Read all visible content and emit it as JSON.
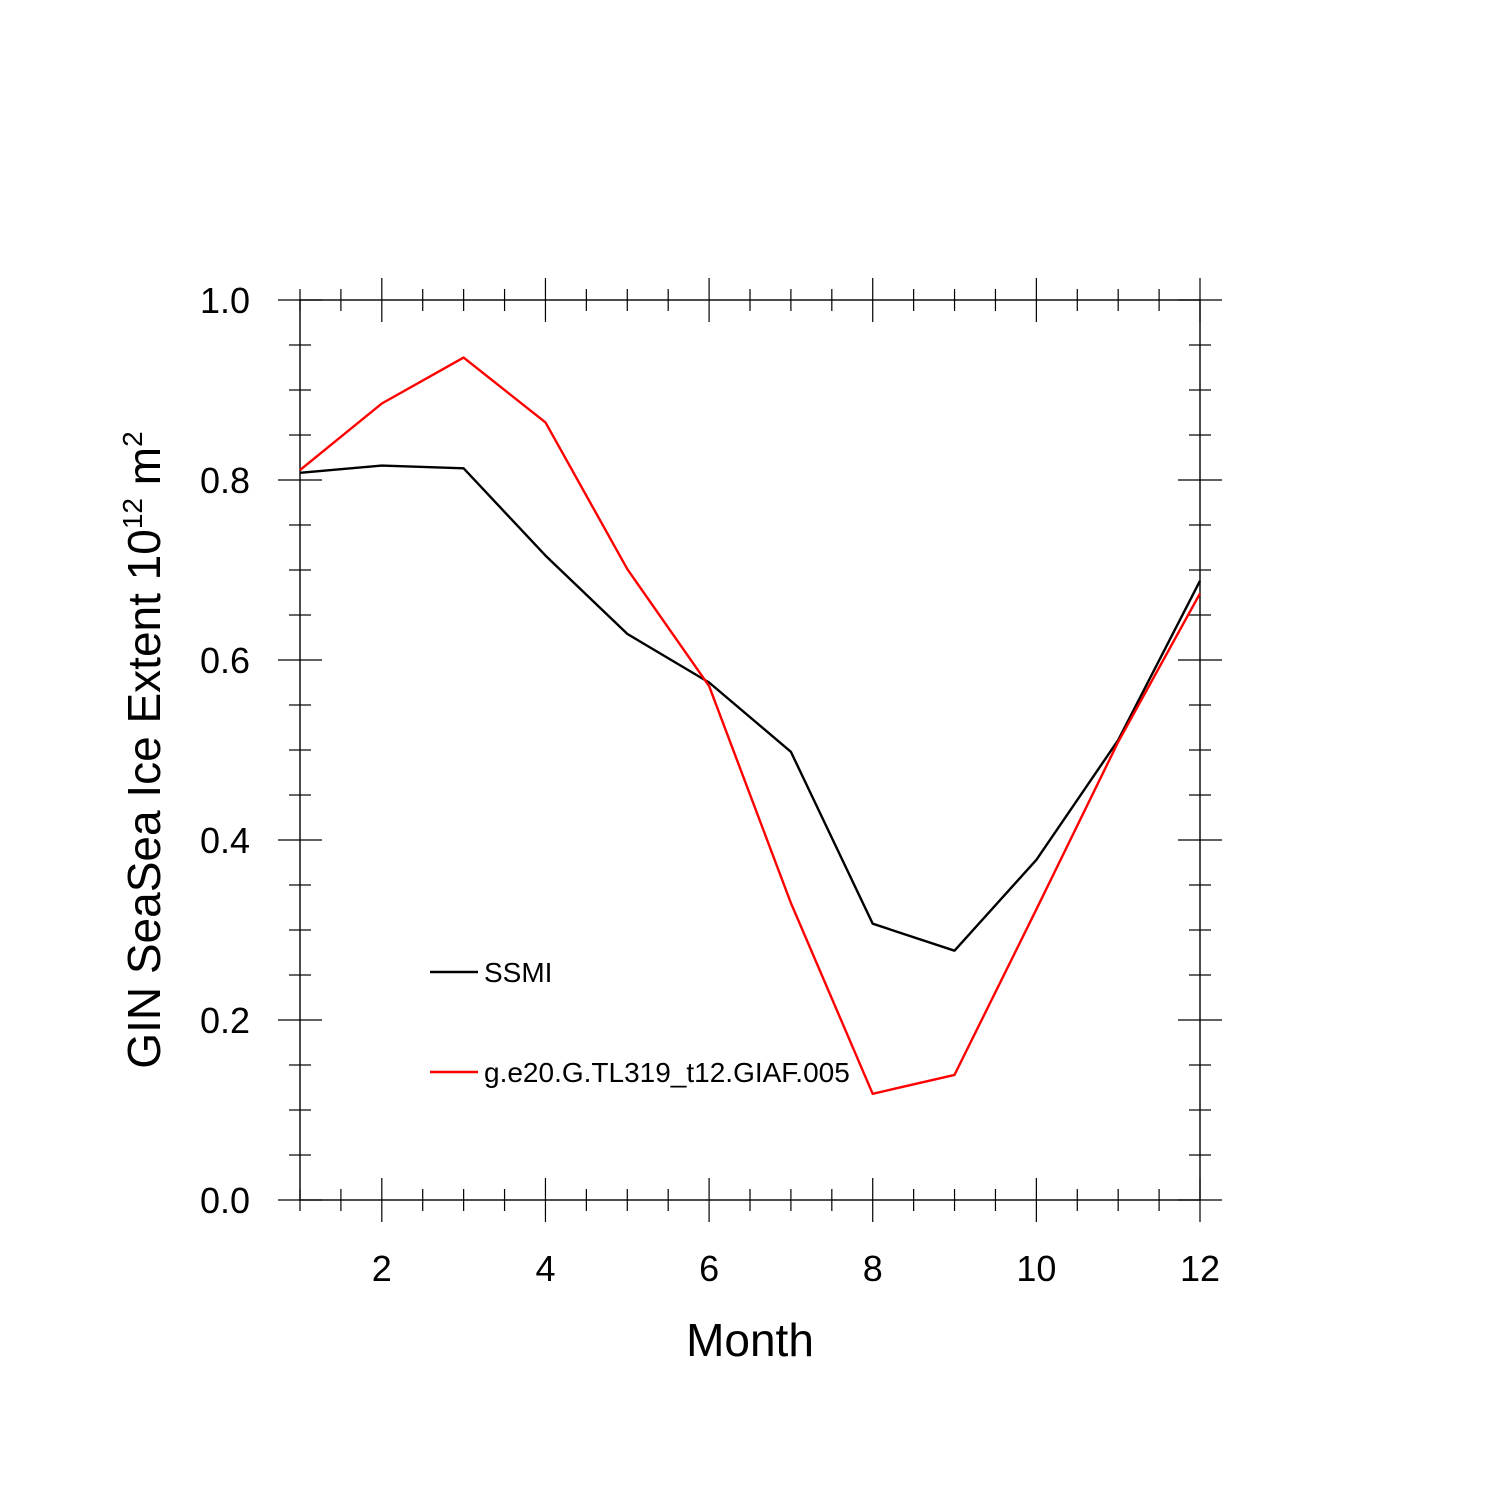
{
  "chart_data": {
    "type": "line",
    "xlabel": "Month",
    "ylabel": {
      "main": "GIN SeaSea Ice Extent 10",
      "exponent": "12",
      "unit": " m",
      "unit_exponent": "2"
    },
    "xlim": [
      1,
      12
    ],
    "ylim": [
      0.0,
      1.0
    ],
    "xticks_major": [
      2,
      4,
      6,
      8,
      10,
      12
    ],
    "yticks_major": [
      0.0,
      0.2,
      0.4,
      0.6,
      0.8,
      1.0
    ],
    "ytick_labels": [
      "0.0",
      "0.2",
      "0.4",
      "0.6",
      "0.8",
      "1.0"
    ],
    "grid": false,
    "legend_position": "lower-left inside plot",
    "series": [
      {
        "name": "SSMI",
        "color": "#000000",
        "x": [
          1,
          2,
          3,
          4,
          5,
          6,
          7,
          8,
          9,
          10,
          11,
          12
        ],
        "y": [
          0.808,
          0.816,
          0.813,
          0.716,
          0.629,
          0.575,
          0.498,
          0.307,
          0.277,
          0.378,
          0.511,
          0.688
        ]
      },
      {
        "name": "g.e20.G.TL319_t12.GIAF.005",
        "color": "#ff0000",
        "x": [
          1,
          2,
          3,
          4,
          5,
          6,
          7,
          8,
          9,
          10,
          11,
          12
        ],
        "y": [
          0.811,
          0.885,
          0.936,
          0.864,
          0.701,
          0.571,
          0.33,
          0.118,
          0.139,
          0.323,
          0.509,
          0.674
        ]
      }
    ]
  }
}
